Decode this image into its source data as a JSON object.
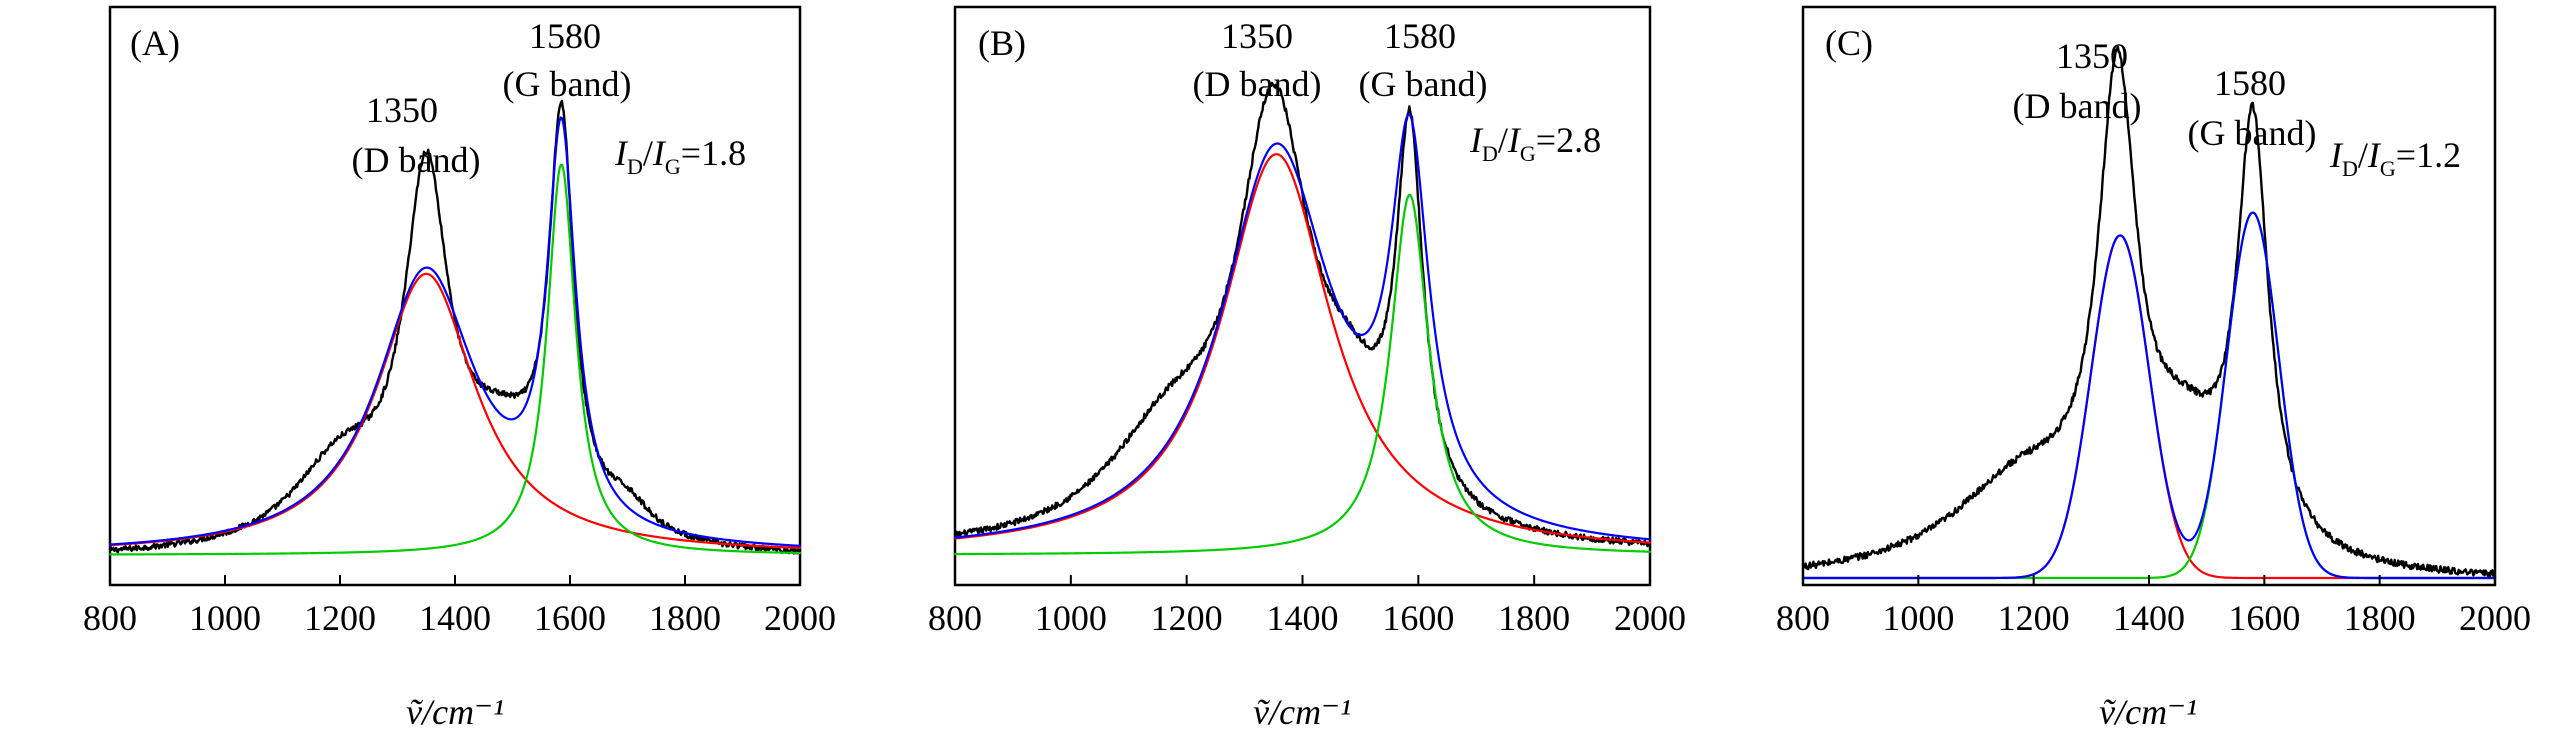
{
  "chart_data": [
    {
      "type": "line",
      "panel_label": "(A)",
      "xlabel": "ṽ/cm⁻¹",
      "xlim": [
        800,
        2000
      ],
      "xticks": [
        800,
        1000,
        1200,
        1400,
        1600,
        1800,
        2000
      ],
      "ylim": [
        0,
        1.15
      ],
      "y_axis_ticks": false,
      "ratio_text": {
        "symbol": "I",
        "num_sub": "D",
        "den_sub": "G",
        "value": "=1.8"
      },
      "peak_annotations": [
        {
          "wavenumber": "1350",
          "band": "(D band)"
        },
        {
          "wavenumber": "1580",
          "band": "(G band)"
        }
      ],
      "series": [
        {
          "name": "measured spectrum",
          "color": "#000000",
          "kind": "measured",
          "baseline": -0.01,
          "noise": 0.006,
          "components": [
            {
              "center": 1350,
              "height": 0.72,
              "width": 46
            },
            {
              "center": 1585,
              "height": 0.82,
              "width": 26
            },
            {
              "center": 1200,
              "height": 0.17,
              "width": 100
            },
            {
              "center": 1480,
              "height": 0.2,
              "width": 100
            },
            {
              "center": 1700,
              "height": 0.06,
              "width": 50
            }
          ]
        },
        {
          "name": "D band fit",
          "color": "#ff0000",
          "kind": "lorentz",
          "center": 1350,
          "height": 0.59,
          "width": 105,
          "baseline": 0.0
        },
        {
          "name": "G band fit",
          "color": "#00cc00",
          "kind": "lorentz",
          "center": 1585,
          "height": 0.82,
          "width": 30,
          "baseline": 0.0
        },
        {
          "name": "cumulative fit",
          "color": "#0000ff",
          "kind": "sum",
          "baseline": 0.0
        }
      ]
    },
    {
      "type": "line",
      "panel_label": "(B)",
      "xlabel": "ṽ/cm⁻¹",
      "xlim": [
        800,
        2000
      ],
      "xticks": [
        800,
        1000,
        1200,
        1400,
        1600,
        1800,
        2000
      ],
      "ylim": [
        0,
        1.08
      ],
      "y_axis_ticks": false,
      "ratio_text": {
        "symbol": "I",
        "num_sub": "D",
        "den_sub": "G",
        "value": "=2.8"
      },
      "peak_annotations": [
        {
          "wavenumber": "1350",
          "band": "(D band)"
        },
        {
          "wavenumber": "1580",
          "band": "(G band)"
        }
      ],
      "series": [
        {
          "name": "measured spectrum",
          "color": "#000000",
          "kind": "measured",
          "baseline": 0.0,
          "noise": 0.006,
          "components": [
            {
              "center": 1350,
              "height": 0.8,
              "width": 75
            },
            {
              "center": 1585,
              "height": 0.72,
              "width": 28
            },
            {
              "center": 1170,
              "height": 0.2,
              "width": 130
            },
            {
              "center": 1480,
              "height": 0.18,
              "width": 80
            }
          ]
        },
        {
          "name": "D band fit",
          "color": "#ff0000",
          "kind": "lorentz",
          "center": 1355,
          "height": 0.79,
          "width": 115,
          "baseline": 0.0
        },
        {
          "name": "G band fit",
          "color": "#00cc00",
          "kind": "lorentz",
          "center": 1585,
          "height": 0.71,
          "width": 40,
          "baseline": 0.0
        },
        {
          "name": "cumulative fit",
          "color": "#0000ff",
          "kind": "sum",
          "baseline": 0.0
        }
      ]
    },
    {
      "type": "line",
      "panel_label": "(C)",
      "xlabel": "ṽ/cm⁻¹",
      "xlim": [
        800,
        2000
      ],
      "xticks": [
        800,
        1000,
        1200,
        1400,
        1600,
        1800,
        2000
      ],
      "ylim": [
        0,
        1.0
      ],
      "y_axis_ticks": false,
      "ratio_text": {
        "symbol": "I",
        "num_sub": "D",
        "den_sub": "G",
        "value": "=1.2"
      },
      "peak_annotations": [
        {
          "wavenumber": "1350",
          "band": "(D band)"
        },
        {
          "wavenumber": "1580",
          "band": "(G band)"
        }
      ],
      "series": [
        {
          "name": "measured spectrum",
          "color": "#000000",
          "kind": "measured",
          "baseline": -0.01,
          "noise": 0.006,
          "components": [
            {
              "center": 1345,
              "height": 0.78,
              "width": 40
            },
            {
              "center": 1580,
              "height": 0.73,
              "width": 33
            },
            {
              "center": 1180,
              "height": 0.16,
              "width": 150
            },
            {
              "center": 1460,
              "height": 0.18,
              "width": 90
            }
          ]
        },
        {
          "name": "D band fit",
          "color": "#ff0000",
          "kind": "gauss",
          "center": 1350,
          "height": 0.6,
          "width": 50,
          "baseline": 0.0
        },
        {
          "name": "G band fit",
          "color": "#00cc00",
          "kind": "gauss",
          "center": 1580,
          "height": 0.64,
          "width": 45,
          "baseline": 0.0
        },
        {
          "name": "cumulative fit",
          "color": "#0000ff",
          "kind": "sum",
          "baseline": 0.0
        }
      ]
    }
  ]
}
